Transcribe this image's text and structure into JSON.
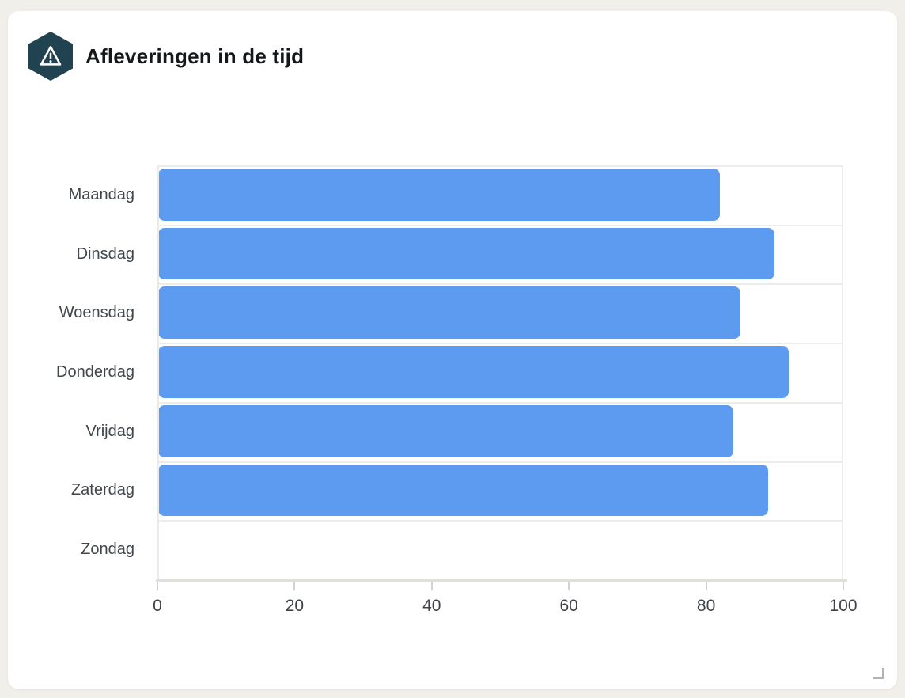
{
  "window": {
    "background_color": "#f0efe9",
    "card_color": "#ffffff"
  },
  "header": {
    "title": "Afleveringen in de tijd",
    "icon": {
      "name": "warning-hexagon-icon",
      "shape": "hexagon",
      "background_color": "#214250",
      "glyph": "warning-triangle",
      "glyph_color": "#ffffff"
    }
  },
  "chart_data": {
    "type": "bar",
    "orientation": "horizontal",
    "title": "Afleveringen in de tijd",
    "categories": [
      "Maandag",
      "Dinsdag",
      "Woensdag",
      "Donderdag",
      "Vrijdag",
      "Zaterdag",
      "Zondag"
    ],
    "values": [
      82,
      90,
      85,
      92,
      84,
      89,
      0
    ],
    "xlabel": "",
    "ylabel": "",
    "xlim": [
      0,
      100
    ],
    "x_ticks": [
      "0",
      "20",
      "40",
      "60",
      "80",
      "100"
    ],
    "x_tick_values": [
      0,
      20,
      40,
      60,
      80,
      100
    ],
    "grid": true,
    "legend": "none",
    "bar_color": "#5c9bf0",
    "label_color": "#40464b",
    "tick_label_color": "#3f4348"
  },
  "footer": {
    "resize_handle": "resize-corner"
  }
}
